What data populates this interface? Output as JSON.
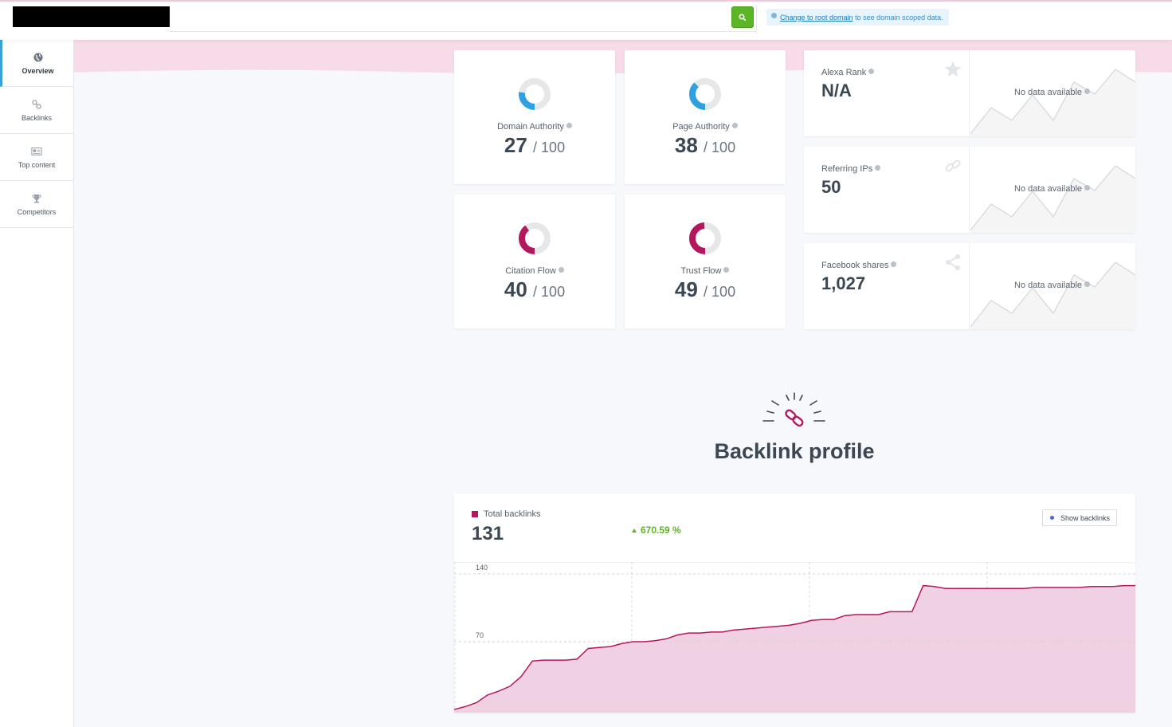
{
  "topbar": {
    "notice_link": "Change to root domain",
    "notice_text": " to see domain scoped data."
  },
  "sidebar": {
    "items": [
      {
        "label": "Overview",
        "icon": "globe-icon"
      },
      {
        "label": "Backlinks",
        "icon": "link-icon"
      },
      {
        "label": "Top content",
        "icon": "newspaper-icon"
      },
      {
        "label": "Competitors",
        "icon": "trophy-icon"
      }
    ]
  },
  "metrics": [
    {
      "label": "Domain Authority",
      "value": "27",
      "max": "/ 100",
      "color": "#2fa0e0"
    },
    {
      "label": "Page Authority",
      "value": "38",
      "max": "/ 100",
      "color": "#2fa0e0"
    },
    {
      "label": "Citation Flow",
      "value": "40",
      "max": "/ 100",
      "color": "#b5175e"
    },
    {
      "label": "Trust Flow",
      "value": "49",
      "max": "/ 100",
      "color": "#b5175e"
    }
  ],
  "stats": [
    {
      "label": "Alexa Rank",
      "value": "N/A",
      "icon": "star-icon",
      "nodata": "No data available"
    },
    {
      "label": "Referring IPs",
      "value": "50",
      "icon": "link-icon",
      "nodata": "No data available"
    },
    {
      "label": "Facebook shares",
      "value": "1,027",
      "icon": "share-icon",
      "nodata": "No data available"
    }
  ],
  "backlink_profile": {
    "title": "Backlink profile",
    "legend": "Total backlinks",
    "total": "131",
    "change": "670.59 %",
    "show_button": "Show backlinks"
  },
  "chart_data": {
    "type": "area",
    "series": [
      {
        "name": "Total backlinks",
        "color": "#b5175e"
      }
    ],
    "y_ticks": [
      "140",
      "70"
    ],
    "values": [
      0,
      3,
      7,
      15,
      19,
      24,
      34,
      50,
      51,
      51,
      51,
      52,
      63,
      64,
      65,
      68,
      70,
      70,
      71,
      73,
      77,
      79,
      79,
      80,
      80,
      82,
      83,
      84,
      85,
      86,
      87,
      89,
      92,
      93,
      93,
      97,
      98,
      98,
      98,
      101,
      101,
      101,
      128,
      127,
      125,
      125,
      125,
      125,
      125,
      125,
      125,
      125,
      126,
      126,
      126,
      126,
      126,
      127,
      127,
      127,
      128,
      128
    ],
    "ylim": [
      0,
      158
    ]
  }
}
